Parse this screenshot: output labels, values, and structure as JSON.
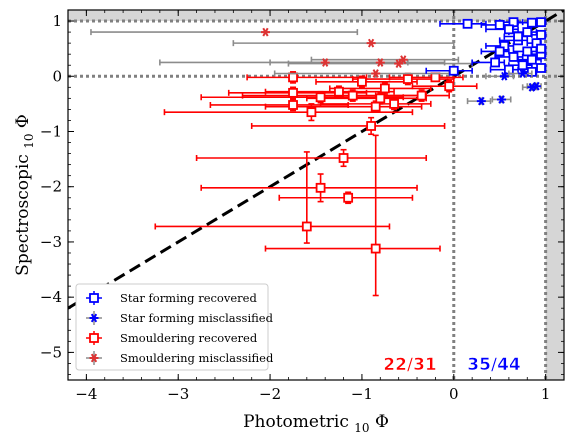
{
  "chart_data": {
    "type": "scatter",
    "title": "",
    "xlabel": "Photometric log10 Φ",
    "ylabel": "Spectroscopic log10 Φ",
    "xlabel_main": "Photometric ",
    "xlabel_sub": "10",
    "xlabel_tail": " Φ",
    "ylabel_main": "Spectroscopic ",
    "ylabel_sub": "10",
    "ylabel_tail": " Φ",
    "xlim": [
      -4.2,
      1.2
    ],
    "ylim": [
      -5.5,
      1.2
    ],
    "xticks": [
      -4,
      -3,
      -2,
      -1,
      0,
      1
    ],
    "yticks": [
      -5,
      -4,
      -3,
      -2,
      -1,
      0,
      1
    ],
    "xtick_labels": [
      "−4",
      "−3",
      "−2",
      "−1",
      "0",
      "1"
    ],
    "ytick_labels": [
      "−5",
      "−4",
      "−3",
      "−2",
      "−1",
      "0",
      "1"
    ],
    "grid": false,
    "legend_position": "lower-left",
    "reference_lines": {
      "diagonal": "y = x",
      "vertical_dotted": [
        0,
        1
      ],
      "horizontal_dotted": [
        0,
        1
      ]
    },
    "shaded_region": {
      "x_from": 1,
      "description": "gray band beyond Φ = 1"
    },
    "annotations": [
      {
        "text": "22/31",
        "x": -0.45,
        "y": -5.2,
        "color": "#ff0000"
      },
      {
        "text": "35/44",
        "x": 0.45,
        "y": -5.2,
        "color": "#0000ff"
      }
    ],
    "series": [
      {
        "name": "Star forming recovered",
        "color": "#0000ff",
        "marker": "square-open",
        "points": [
          {
            "x": 0.15,
            "y": 0.95,
            "xerr": [
              0.3,
              0.2
            ],
            "yerr": [
              0.05,
              0.05
            ]
          },
          {
            "x": 0.5,
            "y": 0.93,
            "xerr": [
              0.2,
              0.15
            ],
            "yerr": [
              0.05,
              0.05
            ]
          },
          {
            "x": 0.65,
            "y": 0.98,
            "xerr": [
              0.15,
              0.1
            ],
            "yerr": [
              0.05,
              0.05
            ]
          },
          {
            "x": 0.85,
            "y": 0.97,
            "xerr": [
              0.15,
              0.1
            ],
            "yerr": [
              0.05,
              0.05
            ]
          },
          {
            "x": 0.95,
            "y": 0.98,
            "xerr": [
              0.05,
              0.05
            ],
            "yerr": [
              0.04,
              0.04
            ]
          },
          {
            "x": 0.6,
            "y": 0.85,
            "xerr": [
              0.25,
              0.1
            ],
            "yerr": [
              0.05,
              0.05
            ]
          },
          {
            "x": 0.8,
            "y": 0.8,
            "xerr": [
              0.2,
              0.1
            ],
            "yerr": [
              0.05,
              0.05
            ]
          },
          {
            "x": 0.95,
            "y": 0.75,
            "xerr": [
              0.1,
              0.05
            ],
            "yerr": [
              0.05,
              0.05
            ]
          },
          {
            "x": 0.7,
            "y": 0.65,
            "xerr": [
              0.2,
              0.1
            ],
            "yerr": [
              0.05,
              0.05
            ]
          },
          {
            "x": 0.9,
            "y": 0.6,
            "xerr": [
              0.1,
              0.05
            ],
            "yerr": [
              0.05,
              0.05
            ]
          },
          {
            "x": 0.55,
            "y": 0.55,
            "xerr": [
              0.2,
              0.1
            ],
            "yerr": [
              0.05,
              0.05
            ]
          },
          {
            "x": 0.8,
            "y": 0.45,
            "xerr": [
              0.15,
              0.1
            ],
            "yerr": [
              0.05,
              0.05
            ]
          },
          {
            "x": 0.95,
            "y": 0.4,
            "xerr": [
              0.1,
              0.05
            ],
            "yerr": [
              0.05,
              0.05
            ]
          },
          {
            "x": 0.65,
            "y": 0.35,
            "xerr": [
              0.2,
              0.1
            ],
            "yerr": [
              0.05,
              0.05
            ]
          },
          {
            "x": 0.85,
            "y": 0.3,
            "xerr": [
              0.15,
              0.1
            ],
            "yerr": [
              0.05,
              0.05
            ]
          },
          {
            "x": 0.45,
            "y": 0.25,
            "xerr": [
              0.25,
              0.1
            ],
            "yerr": [
              0.05,
              0.05
            ]
          },
          {
            "x": 0.75,
            "y": 0.2,
            "xerr": [
              0.15,
              0.1
            ],
            "yerr": [
              0.05,
              0.05
            ]
          },
          {
            "x": 0.95,
            "y": 0.15,
            "xerr": [
              0.1,
              0.05
            ],
            "yerr": [
              0.05,
              0.05
            ]
          },
          {
            "x": 0.6,
            "y": 0.12,
            "xerr": [
              0.2,
              0.1
            ],
            "yerr": [
              0.05,
              0.05
            ]
          },
          {
            "x": 0.85,
            "y": 0.08,
            "xerr": [
              0.1,
              0.05
            ],
            "yerr": [
              0.05,
              0.05
            ]
          },
          {
            "x": 0.0,
            "y": 0.1,
            "xerr": [
              0.3,
              0.2
            ],
            "yerr": [
              0.05,
              0.05
            ]
          },
          {
            "x": 0.95,
            "y": 0.5,
            "xerr": [
              0.05,
              0.05
            ],
            "yerr": [
              0.05,
              0.05
            ]
          },
          {
            "x": 0.7,
            "y": 0.72,
            "xerr": [
              0.15,
              0.1
            ],
            "yerr": [
              0.05,
              0.05
            ]
          },
          {
            "x": 0.5,
            "y": 0.45,
            "xerr": [
              0.2,
              0.1
            ],
            "yerr": [
              0.05,
              0.05
            ]
          }
        ]
      },
      {
        "name": "Star forming misclassified",
        "color": "#0000ff",
        "marker": "star",
        "points": [
          {
            "x": 0.55,
            "y": 0.0,
            "xerr": [
              0.2,
              0.1
            ],
            "yerr": [
              0,
              0
            ]
          },
          {
            "x": 0.75,
            "y": 0.05,
            "xerr": [
              0.15,
              0.1
            ],
            "yerr": [
              0,
              0
            ]
          },
          {
            "x": 0.3,
            "y": -0.45,
            "xerr": [
              0.15,
              0.1
            ],
            "yerr": [
              0.05,
              0.05
            ]
          },
          {
            "x": 0.52,
            "y": -0.42,
            "xerr": [
              0.1,
              0.1
            ],
            "yerr": [
              0.05,
              0.05
            ]
          },
          {
            "x": 0.9,
            "y": -0.18,
            "xerr": [
              0.1,
              0.05
            ],
            "yerr": [
              0.05,
              0.05
            ]
          },
          {
            "x": 0.85,
            "y": -0.2,
            "xerr": [
              0.1,
              0.05
            ],
            "yerr": [
              0.05,
              0.05
            ]
          }
        ]
      },
      {
        "name": "Smouldering recovered",
        "color": "#ff0000",
        "marker": "square-open",
        "points": [
          {
            "x": -1.75,
            "y": -0.02,
            "xerr": [
              0.5,
              0.8
            ],
            "yerr": [
              0.1,
              0.1
            ]
          },
          {
            "x": -1.0,
            "y": -0.1,
            "xerr": [
              0.5,
              0.6
            ],
            "yerr": [
              0.1,
              0.1
            ]
          },
          {
            "x": -0.5,
            "y": -0.05,
            "xerr": [
              0.6,
              0.5
            ],
            "yerr": [
              0.1,
              0.1
            ]
          },
          {
            "x": -0.2,
            "y": -0.02,
            "xerr": [
              0.5,
              0.3
            ],
            "yerr": [
              0.05,
              0.05
            ]
          },
          {
            "x": -0.05,
            "y": -0.18,
            "xerr": [
              0.4,
              0.3
            ],
            "yerr": [
              0.1,
              0.1
            ]
          },
          {
            "x": -0.75,
            "y": -0.22,
            "xerr": [
              0.6,
              0.5
            ],
            "yerr": [
              0.1,
              0.1
            ]
          },
          {
            "x": -1.25,
            "y": -0.28,
            "xerr": [
              0.8,
              0.6
            ],
            "yerr": [
              0.1,
              0.1
            ]
          },
          {
            "x": -1.75,
            "y": -0.3,
            "xerr": [
              0.7,
              0.8
            ],
            "yerr": [
              0.1,
              0.1
            ]
          },
          {
            "x": -1.45,
            "y": -0.38,
            "xerr": [
              1.3,
              0.9
            ],
            "yerr": [
              0.1,
              0.1
            ]
          },
          {
            "x": -1.1,
            "y": -0.35,
            "xerr": [
              1.2,
              0.8
            ],
            "yerr": [
              0.1,
              0.1
            ]
          },
          {
            "x": -0.35,
            "y": -0.35,
            "xerr": [
              0.5,
              0.3
            ],
            "yerr": [
              0.1,
              0.1
            ]
          },
          {
            "x": -0.8,
            "y": -0.4,
            "xerr": [
              0.8,
              0.5
            ],
            "yerr": [
              0.1,
              0.1
            ]
          },
          {
            "x": -1.75,
            "y": -0.52,
            "xerr": [
              0.9,
              0.6
            ],
            "yerr": [
              0.1,
              0.1
            ]
          },
          {
            "x": -1.55,
            "y": -0.65,
            "xerr": [
              1.6,
              1.1
            ],
            "yerr": [
              0.15,
              0.15
            ]
          },
          {
            "x": -0.85,
            "y": -0.55,
            "xerr": [
              1.2,
              0.5
            ],
            "yerr": [
              0.1,
              0.1
            ]
          },
          {
            "x": -0.65,
            "y": -0.5,
            "xerr": [
              0.8,
              0.4
            ],
            "yerr": [
              0.1,
              0.1
            ]
          },
          {
            "x": -0.9,
            "y": -0.9,
            "xerr": [
              1.3,
              0.8
            ],
            "yerr": [
              0.15,
              0.15
            ]
          },
          {
            "x": -1.2,
            "y": -1.48,
            "xerr": [
              1.6,
              0.9
            ],
            "yerr": [
              0.15,
              0.15
            ]
          },
          {
            "x": -1.45,
            "y": -2.02,
            "xerr": [
              1.3,
              1.05
            ],
            "yerr": [
              0.25,
              0.25
            ]
          },
          {
            "x": -1.15,
            "y": -2.2,
            "xerr": [
              0.75,
              0.7
            ],
            "yerr": [
              0.1,
              0.1
            ]
          },
          {
            "x": -1.6,
            "y": -2.72,
            "xerr": [
              1.65,
              0.9
            ],
            "yerr": [
              0.3,
              1.35
            ]
          },
          {
            "x": -0.85,
            "y": -3.12,
            "xerr": [
              1.2,
              0.7
            ],
            "yerr": [
              0.85,
              2.05
            ]
          }
        ]
      },
      {
        "name": "Smouldering misclassified",
        "color": "#dd3333",
        "marker": "star",
        "points": [
          {
            "x": -2.05,
            "y": 0.8,
            "xerr": [
              1.9,
              1.0
            ],
            "yerr": [
              0,
              0
            ]
          },
          {
            "x": -0.9,
            "y": 0.6,
            "xerr": [
              1.5,
              0.9
            ],
            "yerr": [
              0,
              0
            ]
          },
          {
            "x": -1.4,
            "y": 0.25,
            "xerr": [
              1.8,
              0.9
            ],
            "yerr": [
              0,
              0
            ]
          },
          {
            "x": -0.8,
            "y": 0.25,
            "xerr": [
              1.2,
              0.7
            ],
            "yerr": [
              0,
              0
            ]
          },
          {
            "x": -0.55,
            "y": 0.3,
            "xerr": [
              1.0,
              0.6
            ],
            "yerr": [
              0,
              0
            ]
          },
          {
            "x": -0.6,
            "y": 0.23,
            "xerr": [
              1.2,
              0.8
            ],
            "yerr": [
              0,
              0
            ]
          },
          {
            "x": -0.85,
            "y": 0.05,
            "xerr": [
              1.1,
              0.8
            ],
            "yerr": [
              0,
              0
            ]
          }
        ]
      }
    ]
  }
}
